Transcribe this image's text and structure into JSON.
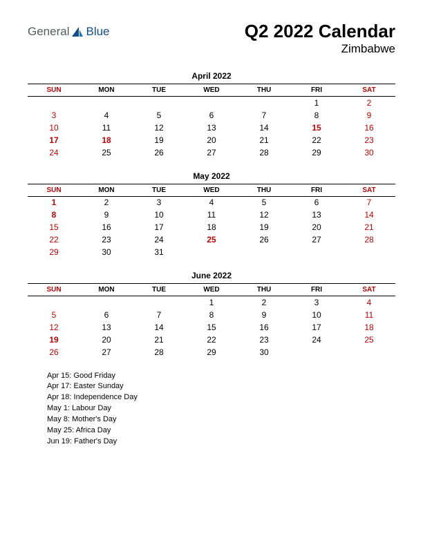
{
  "logo": {
    "text_general": "General",
    "text_blue": "Blue",
    "icon_color": "#0f4e8b"
  },
  "header": {
    "title": "Q2 2022 Calendar",
    "subtitle": "Zimbabwe"
  },
  "colors": {
    "holiday": "#c00000",
    "text": "#000000",
    "background": "#ffffff"
  },
  "typography": {
    "title_size": 26,
    "subtitle_size": 17,
    "month_title_size": 12,
    "dayhead_size": 10,
    "cell_size": 12,
    "holiday_list_size": 11
  },
  "day_headers": [
    "SUN",
    "MON",
    "TUE",
    "WED",
    "THU",
    "FRI",
    "SAT"
  ],
  "weekend_indices": [
    0,
    6
  ],
  "months": [
    {
      "title": "April 2022",
      "weeks": [
        [
          null,
          null,
          null,
          null,
          null,
          {
            "n": 1
          },
          {
            "n": 2,
            "red": true
          }
        ],
        [
          {
            "n": 3,
            "red": true
          },
          {
            "n": 4
          },
          {
            "n": 5
          },
          {
            "n": 6
          },
          {
            "n": 7
          },
          {
            "n": 8
          },
          {
            "n": 9,
            "red": true
          }
        ],
        [
          {
            "n": 10,
            "red": true
          },
          {
            "n": 11
          },
          {
            "n": 12
          },
          {
            "n": 13
          },
          {
            "n": 14
          },
          {
            "n": 15,
            "red": true,
            "bold": true
          },
          {
            "n": 16,
            "red": true
          }
        ],
        [
          {
            "n": 17,
            "red": true,
            "bold": true
          },
          {
            "n": 18,
            "red": true,
            "bold": true
          },
          {
            "n": 19
          },
          {
            "n": 20
          },
          {
            "n": 21
          },
          {
            "n": 22
          },
          {
            "n": 23,
            "red": true
          }
        ],
        [
          {
            "n": 24,
            "red": true
          },
          {
            "n": 25
          },
          {
            "n": 26
          },
          {
            "n": 27
          },
          {
            "n": 28
          },
          {
            "n": 29
          },
          {
            "n": 30,
            "red": true
          }
        ]
      ]
    },
    {
      "title": "May 2022",
      "weeks": [
        [
          {
            "n": 1,
            "red": true,
            "bold": true
          },
          {
            "n": 2
          },
          {
            "n": 3
          },
          {
            "n": 4
          },
          {
            "n": 5
          },
          {
            "n": 6
          },
          {
            "n": 7,
            "red": true
          }
        ],
        [
          {
            "n": 8,
            "red": true,
            "bold": true
          },
          {
            "n": 9
          },
          {
            "n": 10
          },
          {
            "n": 11
          },
          {
            "n": 12
          },
          {
            "n": 13
          },
          {
            "n": 14,
            "red": true
          }
        ],
        [
          {
            "n": 15,
            "red": true
          },
          {
            "n": 16
          },
          {
            "n": 17
          },
          {
            "n": 18
          },
          {
            "n": 19
          },
          {
            "n": 20
          },
          {
            "n": 21,
            "red": true
          }
        ],
        [
          {
            "n": 22,
            "red": true
          },
          {
            "n": 23
          },
          {
            "n": 24
          },
          {
            "n": 25,
            "red": true,
            "bold": true
          },
          {
            "n": 26
          },
          {
            "n": 27
          },
          {
            "n": 28,
            "red": true
          }
        ],
        [
          {
            "n": 29,
            "red": true
          },
          {
            "n": 30
          },
          {
            "n": 31
          },
          null,
          null,
          null,
          null
        ]
      ]
    },
    {
      "title": "June 2022",
      "weeks": [
        [
          null,
          null,
          null,
          {
            "n": 1
          },
          {
            "n": 2
          },
          {
            "n": 3
          },
          {
            "n": 4,
            "red": true
          }
        ],
        [
          {
            "n": 5,
            "red": true
          },
          {
            "n": 6
          },
          {
            "n": 7
          },
          {
            "n": 8
          },
          {
            "n": 9
          },
          {
            "n": 10
          },
          {
            "n": 11,
            "red": true
          }
        ],
        [
          {
            "n": 12,
            "red": true
          },
          {
            "n": 13
          },
          {
            "n": 14
          },
          {
            "n": 15
          },
          {
            "n": 16
          },
          {
            "n": 17
          },
          {
            "n": 18,
            "red": true
          }
        ],
        [
          {
            "n": 19,
            "red": true,
            "bold": true
          },
          {
            "n": 20
          },
          {
            "n": 21
          },
          {
            "n": 22
          },
          {
            "n": 23
          },
          {
            "n": 24
          },
          {
            "n": 25,
            "red": true
          }
        ],
        [
          {
            "n": 26,
            "red": true
          },
          {
            "n": 27
          },
          {
            "n": 28
          },
          {
            "n": 29
          },
          {
            "n": 30
          },
          null,
          null
        ]
      ]
    }
  ],
  "holidays": [
    "Apr 15: Good Friday",
    "Apr 17: Easter Sunday",
    "Apr 18: Independence Day",
    "May 1: Labour Day",
    "May 8: Mother's Day",
    "May 25: Africa Day",
    "Jun 19: Father's Day"
  ]
}
